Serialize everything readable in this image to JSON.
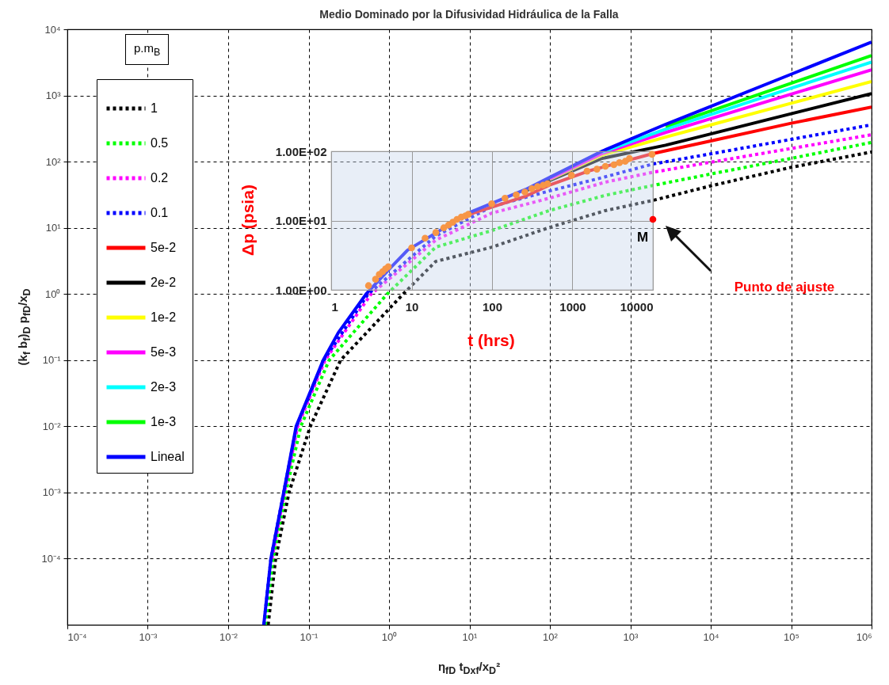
{
  "chart_data": [
    {
      "type": "line",
      "title": "Medio Dominado por la Difusividad Hidráulica de la Falla",
      "xlabel": "η$_{fD}$ t$_{Dxf}$/x$_{D}$²",
      "ylabel": "(k$_{f}$ b$_{f}$)$_{D}$ p$_{fD}$/x$_{D}$",
      "legend_title": "p.m$_{B}$",
      "log": "xy",
      "xlim": [
        0.0001,
        1000000
      ],
      "ylim": [
        1e-05,
        10000
      ],
      "xticks": [
        {
          "value": 0.0001,
          "label": "10⁻⁴"
        },
        {
          "value": 0.001,
          "label": "10⁻³"
        },
        {
          "value": 0.01,
          "label": "10⁻²"
        },
        {
          "value": 0.1,
          "label": "10⁻¹"
        },
        {
          "value": 1,
          "label": "10⁰"
        },
        {
          "value": 10,
          "label": "10¹"
        },
        {
          "value": 100,
          "label": "10²"
        },
        {
          "value": 1000,
          "label": "10³"
        },
        {
          "value": 10000,
          "label": "10⁴"
        },
        {
          "value": 100000,
          "label": "10⁵"
        },
        {
          "value": 1000000,
          "label": "10⁶"
        }
      ],
      "yticks": [
        {
          "value": 0.0001,
          "label": "10⁻⁴"
        },
        {
          "value": 0.001,
          "label": "10⁻³"
        },
        {
          "value": 0.01,
          "label": "10⁻²"
        },
        {
          "value": 0.1,
          "label": "10⁻¹"
        },
        {
          "value": 1,
          "label": "10⁰"
        },
        {
          "value": 10,
          "label": "10¹"
        },
        {
          "value": 100,
          "label": "10²"
        },
        {
          "value": 1000,
          "label": "10³"
        },
        {
          "value": 10000,
          "label": "10⁴"
        }
      ],
      "grid": true,
      "legend": "top left",
      "series": [
        {
          "name": "1",
          "color": "#000000",
          "line_style": "dotted",
          "x": [
            0.0314,
            0.0389,
            0.057,
            0.105,
            0.25,
            1.5,
            3.8,
            19,
            98,
            490,
            1900,
            10000,
            100000,
            1000000
          ],
          "values": [
            1e-05,
            0.0001,
            0.001,
            0.01,
            0.1,
            1,
            3.1,
            5.1,
            10.1,
            18.2,
            25.9,
            43,
            82,
            140
          ]
        },
        {
          "name": "0.5",
          "color": "#00ff00",
          "line_style": "dotted",
          "x": [
            0.029,
            0.036,
            0.052,
            0.08,
            0.18,
            0.95,
            3.8,
            19,
            98,
            490,
            1900,
            10000,
            100000,
            1000000
          ],
          "values": [
            1e-05,
            0.0001,
            0.001,
            0.01,
            0.1,
            1,
            5.1,
            9.1,
            18.2,
            31,
            43.6,
            65,
            112,
            195
          ]
        },
        {
          "name": "0.2",
          "color": "#ff00ff",
          "line_style": "dotted",
          "x": [
            0.035,
            0.05,
            0.073,
            0.16,
            0.6,
            3.8,
            19,
            98,
            490,
            1900,
            10000,
            100000,
            1000000
          ],
          "values": [
            0.0001,
            0.001,
            0.01,
            0.1,
            1,
            6.5,
            16.7,
            28,
            49,
            69,
            98,
            158,
            255
          ]
        },
        {
          "name": "0.1",
          "color": "#0000ff",
          "line_style": "dotted",
          "x": [
            0.0278,
            0.034,
            0.049,
            0.071,
            0.155,
            0.55,
            3.8,
            19,
            98,
            490,
            1900,
            10000,
            100000,
            1000000
          ],
          "values": [
            1e-05,
            0.0001,
            0.001,
            0.01,
            0.1,
            1,
            7.5,
            21,
            36,
            59,
            92,
            131,
            217,
            360
          ]
        },
        {
          "name": "5e-2",
          "color": "#ff0000",
          "line_style": "solid",
          "x": [
            10,
            50,
            98,
            300,
            1900,
            10000,
            100000,
            1000000
          ],
          "values": [
            16,
            30,
            44,
            72,
            132,
            205,
            380,
            670
          ]
        },
        {
          "name": "2e-2",
          "color": "#000000",
          "line_style": "solid",
          "x": [
            50,
            100,
            447,
            2740,
            10000,
            100000,
            1000000
          ],
          "values": [
            36,
            52,
            112,
            177,
            262,
            530,
            1070
          ]
        },
        {
          "name": "1e-2",
          "color": "#ffff00",
          "line_style": "solid",
          "x": [
            100,
            447,
            2740,
            10000,
            100000,
            1000000
          ],
          "values": [
            54,
            125,
            235,
            359,
            764,
            1620
          ]
        },
        {
          "name": "5e-3",
          "color": "#ff00ff",
          "line_style": "solid",
          "x": [
            100,
            447,
            2740,
            10000,
            100000,
            1000000
          ],
          "values": [
            55,
            133,
            276,
            446,
            1045,
            2450
          ]
        },
        {
          "name": "2e-3",
          "color": "#00ffff",
          "line_style": "solid",
          "x": [
            447,
            2740,
            10000,
            100000,
            1000000
          ],
          "values": [
            139,
            310,
            516,
            1288,
            3200
          ]
        },
        {
          "name": "1e-3",
          "color": "#00ff00",
          "line_style": "solid",
          "x": [
            2740,
            10000,
            100000,
            1000000
          ],
          "values": [
            340,
            584,
            1528,
            4000
          ]
        },
        {
          "name": "Lineal",
          "color": "#0000ff",
          "line_style": "solid",
          "x": [
            0.0277,
            0.034,
            0.049,
            0.07,
            0.152,
            0.234,
            0.52,
            1.05,
            1.7,
            10,
            50,
            100,
            447,
            2740,
            10000,
            100000,
            1000000
          ],
          "values": [
            1e-05,
            0.0001,
            0.001,
            0.01,
            0.1,
            0.26,
            1,
            2.5,
            4.6,
            17,
            38,
            58,
            144,
            366,
            684,
            2094,
            6400
          ]
        }
      ]
    },
    {
      "type": "scatter",
      "xlabel": "t (hrs)",
      "ylabel": "Δp (psia)",
      "log": "xy",
      "xlim": [
        1,
        10000
      ],
      "ylim": [
        1,
        100
      ],
      "xticks": [
        1,
        10,
        100,
        1000,
        10000
      ],
      "yticks": [
        {
          "value": 1,
          "label": "1.00E+00"
        },
        {
          "value": 10,
          "label": "1.00E+01"
        },
        {
          "value": 100,
          "label": "1.00E+02"
        }
      ],
      "grid": true,
      "marker": "circle",
      "annotations": [
        {
          "text": "M",
          "x": 10000,
          "y": 10.4
        },
        "Punto de ajuste"
      ],
      "series": [
        {
          "color": "#f79646",
          "x": [
            2.91,
            3.56,
            3.96,
            4.36,
            4.73,
            5.13,
            10,
            14.7,
            20,
            25.1,
            28.8,
            32.5,
            36.6,
            41.4,
            46.7,
            50.7,
            99,
            145,
            200,
            256,
            313,
            368,
            433,
            489,
            972,
            1518,
            2015,
            2566,
            3273,
            3846,
            4528,
            5108,
            9750
          ],
          "values": [
            1.15,
            1.42,
            1.67,
            1.83,
            2.01,
            2.16,
            4.03,
            5.57,
            6.71,
            7.85,
            8.61,
            9.46,
            10.4,
            11.2,
            11.7,
            12.3,
            17.5,
            21,
            23.5,
            25.8,
            28.8,
            31,
            32.5,
            34,
            45,
            51.7,
            55.2,
            60.6,
            64,
            68.4,
            71.6,
            78.6,
            90.3
          ]
        },
        {
          "color": "#ff0000",
          "x": [
            10000
          ],
          "values": [
            10.4
          ]
        }
      ]
    }
  ]
}
